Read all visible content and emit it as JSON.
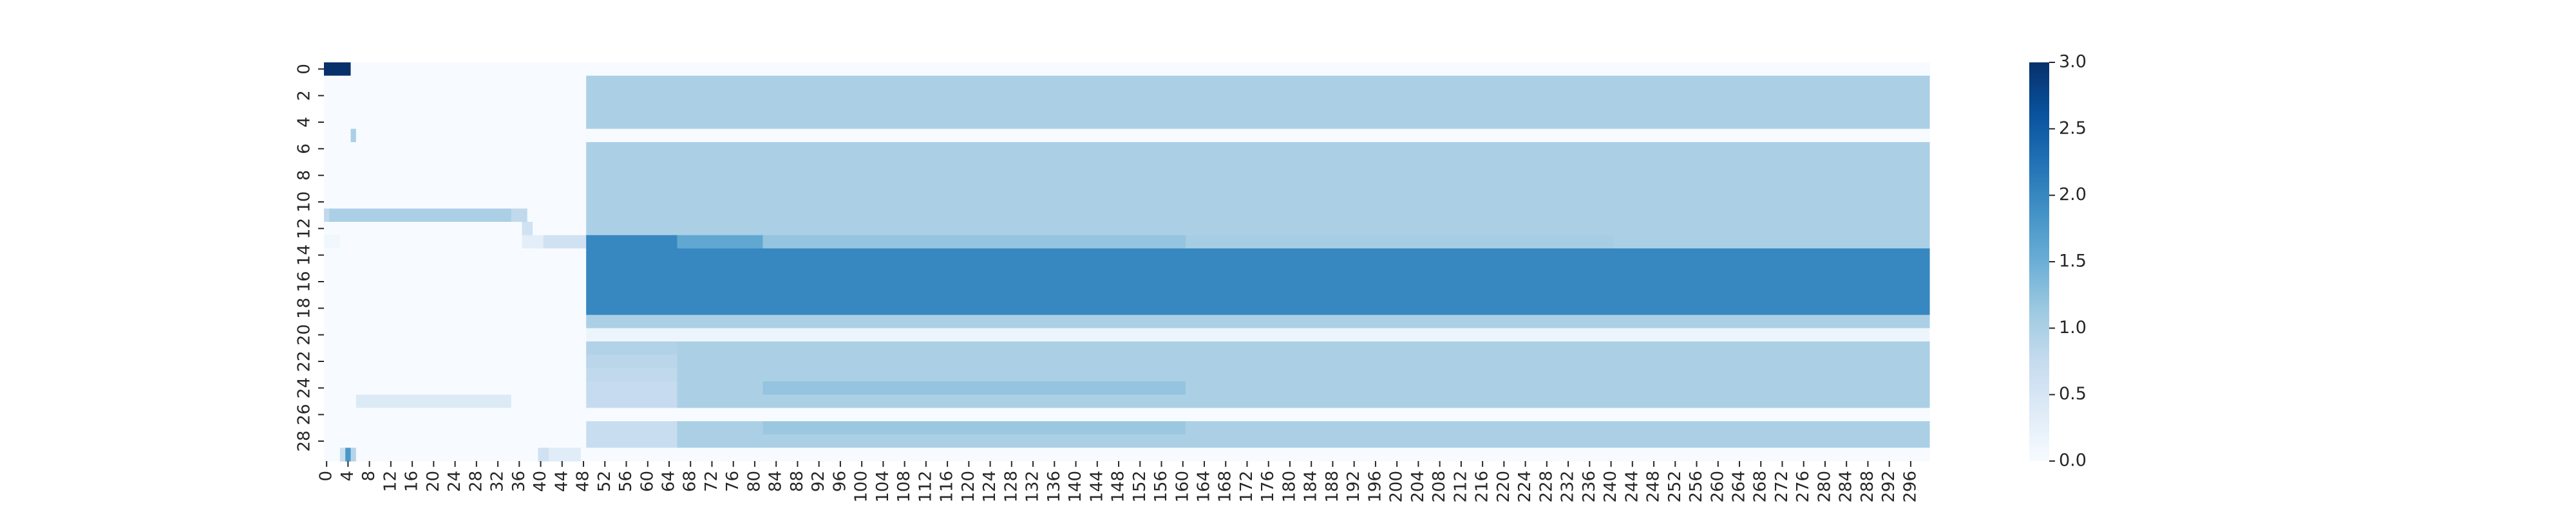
{
  "chart_data": {
    "type": "heatmap",
    "title": "",
    "xlabel": "",
    "ylabel": "",
    "n_cols": 300,
    "n_rows": 30,
    "x_tick_labels": [
      "0",
      "4",
      "8",
      "12",
      "16",
      "20",
      "24",
      "28",
      "32",
      "36",
      "40",
      "44",
      "48",
      "52",
      "56",
      "60",
      "64",
      "68",
      "72",
      "76",
      "80",
      "84",
      "88",
      "92",
      "96",
      "100",
      "104",
      "108",
      "112",
      "116",
      "120",
      "124",
      "128",
      "132",
      "136",
      "140",
      "144",
      "148",
      "152",
      "156",
      "160",
      "164",
      "168",
      "172",
      "176",
      "180",
      "184",
      "188",
      "192",
      "196",
      "200",
      "204",
      "208",
      "212",
      "216",
      "220",
      "224",
      "228",
      "232",
      "236",
      "240",
      "244",
      "248",
      "252",
      "256",
      "260",
      "264",
      "268",
      "272",
      "276",
      "280",
      "284",
      "288",
      "292",
      "296"
    ],
    "y_tick_labels": [
      "0",
      "2",
      "4",
      "6",
      "8",
      "10",
      "12",
      "14",
      "16",
      "18",
      "20",
      "22",
      "24",
      "26",
      "28"
    ],
    "colormap": "Blues",
    "colorbar": {
      "min": 0.0,
      "max": 3.0,
      "tick_labels": [
        "0.0",
        "0.5",
        "1.0",
        "1.5",
        "2.0",
        "2.5",
        "3.0"
      ]
    },
    "default_value": 0.0,
    "regions": [
      {
        "rows": [
          0,
          0
        ],
        "cols": [
          0,
          4
        ],
        "value": 3.0
      },
      {
        "rows": [
          1,
          4
        ],
        "cols": [
          49,
          299
        ],
        "value": 1.0
      },
      {
        "rows": [
          5,
          5
        ],
        "cols": [
          5,
          5
        ],
        "value": 1.0
      },
      {
        "rows": [
          6,
          11
        ],
        "cols": [
          49,
          299
        ],
        "value": 1.0
      },
      {
        "rows": [
          11,
          11
        ],
        "cols": [
          0,
          0
        ],
        "value": 0.8
      },
      {
        "rows": [
          11,
          11
        ],
        "cols": [
          1,
          34
        ],
        "value": 1.0
      },
      {
        "rows": [
          11,
          11
        ],
        "cols": [
          35,
          37
        ],
        "value": 0.8
      },
      {
        "rows": [
          12,
          12
        ],
        "cols": [
          37,
          38
        ],
        "value": 0.6
      },
      {
        "rows": [
          12,
          12
        ],
        "cols": [
          49,
          299
        ],
        "value": 1.0
      },
      {
        "rows": [
          13,
          13
        ],
        "cols": [
          0,
          2
        ],
        "value": 0.1
      },
      {
        "rows": [
          13,
          13
        ],
        "cols": [
          37,
          40
        ],
        "value": 0.3
      },
      {
        "rows": [
          13,
          13
        ],
        "cols": [
          41,
          48
        ],
        "value": 0.6
      },
      {
        "rows": [
          13,
          13
        ],
        "cols": [
          49,
          65
        ],
        "value": 2.0
      },
      {
        "rows": [
          13,
          13
        ],
        "cols": [
          66,
          81
        ],
        "value": 1.6
      },
      {
        "rows": [
          13,
          13
        ],
        "cols": [
          82,
          160
        ],
        "value": 1.2
      },
      {
        "rows": [
          13,
          13
        ],
        "cols": [
          161,
          240
        ],
        "value": 1.05
      },
      {
        "rows": [
          13,
          13
        ],
        "cols": [
          241,
          299
        ],
        "value": 1.0
      },
      {
        "rows": [
          14,
          18
        ],
        "cols": [
          49,
          299
        ],
        "value": 2.0
      },
      {
        "rows": [
          19,
          19
        ],
        "cols": [
          49,
          299
        ],
        "value": 1.0
      },
      {
        "rows": [
          20,
          20
        ],
        "cols": [
          49,
          299
        ],
        "value": 0.15
      },
      {
        "rows": [
          21,
          25
        ],
        "cols": [
          49,
          299
        ],
        "value": 1.0
      },
      {
        "rows": [
          21,
          21
        ],
        "cols": [
          49,
          65
        ],
        "value": 0.95
      },
      {
        "rows": [
          22,
          22
        ],
        "cols": [
          49,
          65
        ],
        "value": 0.85
      },
      {
        "rows": [
          23,
          23
        ],
        "cols": [
          49,
          65
        ],
        "value": 0.8
      },
      {
        "rows": [
          24,
          24
        ],
        "cols": [
          49,
          65
        ],
        "value": 0.75
      },
      {
        "rows": [
          24,
          24
        ],
        "cols": [
          82,
          160
        ],
        "value": 1.2
      },
      {
        "rows": [
          25,
          25
        ],
        "cols": [
          49,
          65
        ],
        "value": 0.75
      },
      {
        "rows": [
          25,
          25
        ],
        "cols": [
          6,
          34
        ],
        "value": 0.4
      },
      {
        "rows": [
          27,
          28
        ],
        "cols": [
          49,
          65
        ],
        "value": 0.7
      },
      {
        "rows": [
          27,
          28
        ],
        "cols": [
          66,
          299
        ],
        "value": 1.0
      },
      {
        "rows": [
          27,
          27
        ],
        "cols": [
          82,
          160
        ],
        "value": 1.15
      },
      {
        "rows": [
          29,
          29
        ],
        "cols": [
          3,
          3
        ],
        "value": 0.7
      },
      {
        "rows": [
          29,
          29
        ],
        "cols": [
          4,
          4
        ],
        "value": 1.8
      },
      {
        "rows": [
          29,
          29
        ],
        "cols": [
          5,
          5
        ],
        "value": 0.9
      },
      {
        "rows": [
          29,
          29
        ],
        "cols": [
          40,
          41
        ],
        "value": 0.6
      },
      {
        "rows": [
          29,
          29
        ],
        "cols": [
          42,
          47
        ],
        "value": 0.35
      }
    ]
  }
}
